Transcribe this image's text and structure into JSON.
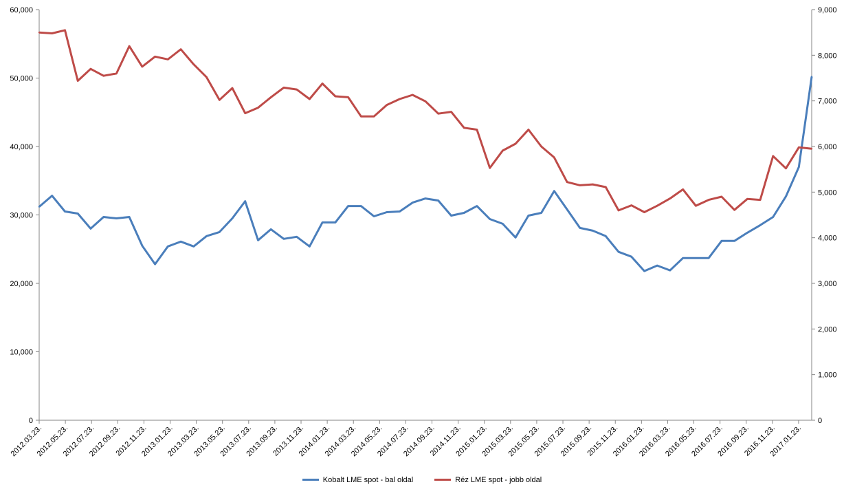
{
  "chart_data": {
    "type": "line",
    "x_tick_labels": [
      "2012.03.23.",
      "2012.05.23.",
      "2012.07.23.",
      "2012.09.23.",
      "2012.11.23.",
      "2013.01.23.",
      "2013.03.23.",
      "2013.05.23.",
      "2013.07.23.",
      "2013.09.23.",
      "2013.11.23.",
      "2014.01.23.",
      "2014.03.23.",
      "2014.05.23.",
      "2014.07.23.",
      "2014.09.23.",
      "2014.11.23.",
      "2015.01.23.",
      "2015.03.23.",
      "2015.05.23.",
      "2015.07.23.",
      "2015.09.23.",
      "2015.11.23.",
      "2016.01.23.",
      "2016.03.23.",
      "2016.05.23.",
      "2016.07.23.",
      "2016.09.23.",
      "2016.11.23.",
      "2017.01.23."
    ],
    "y_left": {
      "ylim": [
        0,
        60000
      ],
      "ticks": [
        "0",
        "10,000",
        "20,000",
        "30,000",
        "40,000",
        "50,000",
        "60,000"
      ]
    },
    "y_right": {
      "ylim": [
        0,
        9000
      ],
      "ticks": [
        "0",
        "1,000",
        "2,000",
        "3,000",
        "4,000",
        "5,000",
        "6,000",
        "7,000",
        "8,000",
        "9,000"
      ]
    },
    "grid": false,
    "legend_position": "bottom",
    "series": [
      {
        "name": "Kobalt LME spot - bal oldal",
        "axis": "left",
        "color": "#4a7ebb",
        "values": [
          31200,
          32800,
          30500,
          30200,
          28000,
          29700,
          29500,
          29700,
          25500,
          22800,
          25400,
          26100,
          25400,
          26900,
          27500,
          29500,
          32000,
          26300,
          27900,
          26500,
          26800,
          25400,
          28900,
          28900,
          31300,
          31300,
          29800,
          30400,
          30500,
          31800,
          32400,
          32100,
          29900,
          30300,
          31300,
          29400,
          28700,
          26700,
          29900,
          30300,
          33500,
          30800,
          28100,
          27700,
          26900,
          24600,
          23900,
          21800,
          22600,
          21900,
          23700,
          23700,
          23700,
          26200,
          26200,
          27400,
          28500,
          29700,
          32700,
          37000,
          50200
        ]
      },
      {
        "name": "Réz LME spot - jobb oldal",
        "axis": "right",
        "color": "#be4b48",
        "values": [
          8500,
          8480,
          8550,
          7440,
          7700,
          7550,
          7600,
          8200,
          7750,
          7970,
          7910,
          8130,
          7800,
          7520,
          7020,
          7280,
          6730,
          6850,
          7080,
          7290,
          7250,
          7040,
          7380,
          7100,
          7080,
          6660,
          6660,
          6910,
          7040,
          7130,
          6990,
          6720,
          6760,
          6410,
          6370,
          5530,
          5910,
          6060,
          6370,
          6000,
          5760,
          5220,
          5150,
          5170,
          5110,
          4600,
          4710,
          4560,
          4700,
          4860,
          5060,
          4700,
          4830,
          4900,
          4610,
          4850,
          4830,
          5790,
          5520,
          5980,
          5950
        ]
      }
    ]
  }
}
